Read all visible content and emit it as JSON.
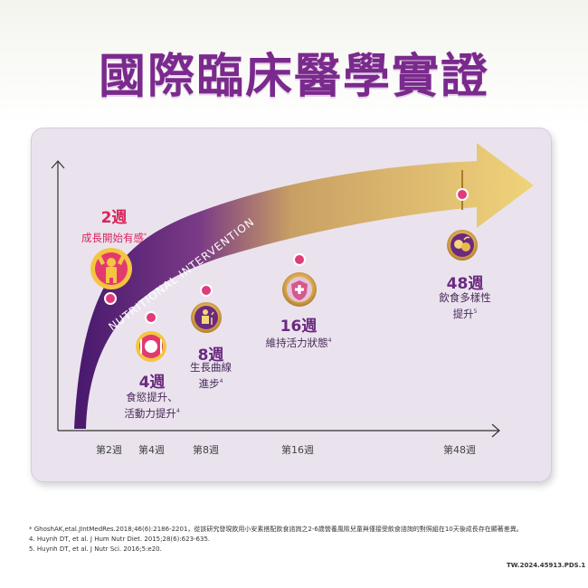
{
  "title": "國際臨床醫學實證",
  "arrow_text": "NUTRITIONAL INTERVENTION",
  "milestones": [
    {
      "week": "2週",
      "desc": "成長開始有感",
      "sup": "*",
      "icon": "muscle-boy-icon"
    },
    {
      "week": "4週",
      "desc_line1": "食慾提升、",
      "desc_line2": "活動力提升",
      "sup": "4",
      "icon": "plate-utensils-icon"
    },
    {
      "week": "8週",
      "desc_line1": "生長曲線",
      "desc_line2": "進步",
      "sup": "4",
      "icon": "growth-child-icon"
    },
    {
      "week": "16週",
      "desc": "維持活力狀態",
      "sup": "4",
      "icon": "shield-plus-icon"
    },
    {
      "week": "48週",
      "desc_line1": "飲食多樣性",
      "desc_line2": "提升",
      "sup": "5",
      "icon": "fruit-basket-icon"
    }
  ],
  "x_ticks": [
    "第2週",
    "第4週",
    "第8週",
    "第16週",
    "第48週"
  ],
  "footnotes": [
    "* GhoshAK,etal.JIntMedRes.2018;46(6):2186-2201，從該研究發現飲用小安素搭配飲食諮詢之2-6歲營養風險兒童與僅接受飲食諮詢的對照組在10天後成長存在顯著差異。",
    "4. Huynh DT, et al. J Hum Nutr Diet. 2015;28(6):623-635.",
    "5. Huynh DT, et al. J Nutr Sci. 2016;5:e20."
  ],
  "doc_code": "TW.2024.45913.PDS.1",
  "colors": {
    "title": "#7a2a8c",
    "accent_red": "#d8245a",
    "arrow_start": "#4a1a6e",
    "arrow_end": "#f2d67a"
  }
}
